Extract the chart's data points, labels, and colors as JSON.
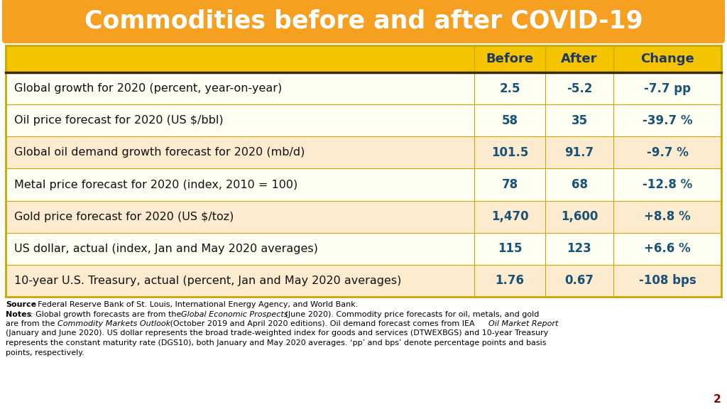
{
  "title": "Commodities before and after COVID-19",
  "title_bg": "#F5A020",
  "title_color": "#FFFFFF",
  "header_bg": "#F5C400",
  "header_color": "#1F3864",
  "col_headers": [
    "Before",
    "After",
    "Change"
  ],
  "rows": [
    {
      "label": "Global growth for 2020 (percent, year-on-year)",
      "before": "2.5",
      "after": "-5.2",
      "change": "-7.7 pp",
      "shaded": false
    },
    {
      "label": "Oil price forecast for 2020 (US $/bbl)",
      "before": "58",
      "after": "35",
      "change": "-39.7 %",
      "shaded": false
    },
    {
      "label": "Global oil demand growth forecast for 2020 (mb/d)",
      "before": "101.5",
      "after": "91.7",
      "change": "-9.7 %",
      "shaded": true
    },
    {
      "label": "Metal price forecast for 2020 (index, 2010 = 100)",
      "before": "78",
      "after": "68",
      "change": "-12.8 %",
      "shaded": false
    },
    {
      "label": "Gold price forecast for 2020 (US $/toz)",
      "before": "1,470",
      "after": "1,600",
      "change": "+8.8 %",
      "shaded": true
    },
    {
      "label": "US dollar, actual (index, Jan and May 2020 averages)",
      "before": "115",
      "after": "123",
      "change": "+6.6 %",
      "shaded": false
    },
    {
      "label": "10-year U.S. Treasury, actual (percent, Jan and May 2020 averages)",
      "before": "1.76",
      "after": "0.67",
      "change": "-108 bps",
      "shaded": true
    }
  ],
  "row_bg_shaded": "#FDEBD0",
  "row_bg_plain": "#FEFEF2",
  "data_color": "#1A5276",
  "label_color": "#111111",
  "border_color": "#C8A800",
  "source_text": "Federal Reserve Bank of St. Louis, International Energy Agency, and World Bank.",
  "note_line1": "Global growth forecasts are from the ",
  "note_line1_italic": "Global Economic Prospects",
  "note_line1_rest": " (June 2020). Commodity price forecasts for oil, metals, and gold",
  "note_line2": "are from the ",
  "note_line2_italic": "Commodity Markets Outlook",
  "note_line2_rest": " (October 2019 and April 2020 editions). Oil demand forecast comes from IEA ",
  "note_line2_italic2": "Oil Market Report",
  "note_line3": "(January and June 2020). US dollar represents the broad trade-weighted index for goods and services (DTWEXBGS) and 10-year Treasury",
  "note_line4": "represents the constant maturity rate (DGS10), both January and May 2020 averages. ‘pp’ and bps’ denote percentage points and basis",
  "note_line5": "points, respectively.",
  "page_number": "2",
  "overall_bg": "#FFFFFF"
}
